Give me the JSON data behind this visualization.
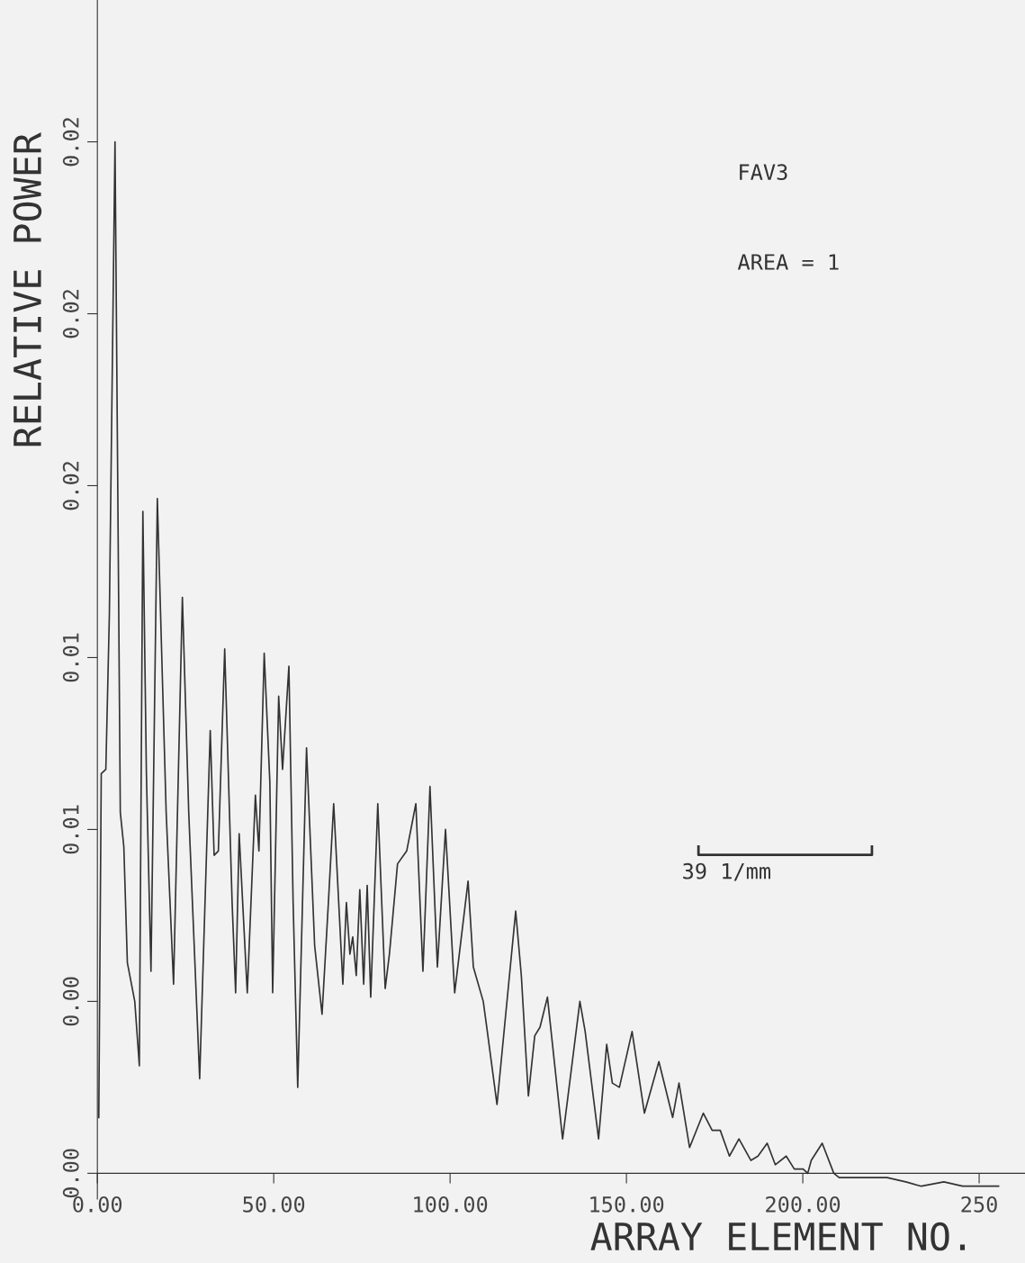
{
  "chart_data": {
    "type": "line",
    "xlabel": "ARRAY ELEMENT NO.",
    "ylabel": "RELATIVE POWER",
    "annotations": [
      "FAV3",
      "AREA = 1",
      "39 1/mm"
    ],
    "xlim": [
      0,
      263
    ],
    "ylim": [
      -0.0006,
      0.0273
    ],
    "xticks": [
      {
        "value": 0,
        "label": "0.00"
      },
      {
        "value": 50,
        "label": "50.00"
      },
      {
        "value": 100,
        "label": "100.00"
      },
      {
        "value": 150,
        "label": "150.00"
      },
      {
        "value": 200,
        "label": "200.00"
      },
      {
        "value": 250,
        "label": "250"
      }
    ],
    "yticks": [
      {
        "value": 0,
        "label": "0.00"
      },
      {
        "value": 0.004,
        "label": "0.00"
      },
      {
        "value": 0.008,
        "label": "0.01"
      },
      {
        "value": 0.012,
        "label": "0.01"
      },
      {
        "value": 0.016,
        "label": "0.02"
      },
      {
        "value": 0.02,
        "label": "0.02"
      },
      {
        "value": 0.024,
        "label": "0.02"
      }
    ],
    "marker": "none",
    "line_style": "solid",
    "series": [
      {
        "color": "#333333",
        "x": [
          0.4,
          1.1,
          2.4,
          3.4,
          5.0,
          5.7,
          6.5,
          7.5,
          8.5,
          10.6,
          11.9,
          12.9,
          13.9,
          15.2,
          17.0,
          18.2,
          19.5,
          21.6,
          24.1,
          25.9,
          29.0,
          32.0,
          33.1,
          34.3,
          36.1,
          38.2,
          39.2,
          40.2,
          42.5,
          44.8,
          45.8,
          47.3,
          48.9,
          49.7,
          51.4,
          52.5,
          54.3,
          55.5,
          56.8,
          59.3,
          61.6,
          63.7,
          65.5,
          67.0,
          69.6,
          70.6,
          71.6,
          72.4,
          73.4,
          74.4,
          75.5,
          76.5,
          77.5,
          79.5,
          81.6,
          82.8,
          85.1,
          87.7,
          90.3,
          92.3,
          94.3,
          96.4,
          98.7,
          101.3,
          105.1,
          106.6,
          109.4,
          110.4,
          113.3,
          118.6,
          120.2,
          122.2,
          124.0,
          125.5,
          127.6,
          131.9,
          134.2,
          136.8,
          138.3,
          142.1,
          144.4,
          146.0,
          148.0,
          151.6,
          155.1,
          159.2,
          163.1,
          164.9,
          167.9,
          171.8,
          174.3,
          176.6,
          179.2,
          181.9,
          185.3,
          187.3,
          189.9,
          192.2,
          195.3,
          197.6,
          200.1,
          201.4,
          202.4,
          205.5,
          208.8,
          210.3,
          218.5,
          223.9,
          229.2,
          233.6,
          240.0,
          245.3,
          255.5
        ],
        "values": [
          0.0013,
          0.0093,
          0.0094,
          0.013,
          0.024,
          0.0168,
          0.0084,
          0.0076,
          0.0049,
          0.004,
          0.0025,
          0.0154,
          0.0093,
          0.0047,
          0.0157,
          0.0122,
          0.0084,
          0.0044,
          0.0134,
          0.0084,
          0.0022,
          0.0103,
          0.0074,
          0.0075,
          0.0122,
          0.0063,
          0.0042,
          0.0079,
          0.0042,
          0.0088,
          0.0075,
          0.0121,
          0.0091,
          0.0042,
          0.0111,
          0.0094,
          0.0118,
          0.0063,
          0.002,
          0.0099,
          0.0053,
          0.0037,
          0.0063,
          0.0086,
          0.0044,
          0.0063,
          0.0051,
          0.0055,
          0.0046,
          0.0066,
          0.0044,
          0.0067,
          0.0041,
          0.0086,
          0.0043,
          0.0051,
          0.0072,
          0.0075,
          0.0086,
          0.0047,
          0.009,
          0.0048,
          0.008,
          0.0042,
          0.0068,
          0.0048,
          0.004,
          0.0034,
          0.0016,
          0.0061,
          0.0046,
          0.0018,
          0.0032,
          0.0034,
          0.0041,
          0.0008,
          0.0023,
          0.004,
          0.0033,
          0.0008,
          0.003,
          0.0021,
          0.002,
          0.0033,
          0.0014,
          0.0026,
          0.0013,
          0.0021,
          0.0006,
          0.0014,
          0.001,
          0.001,
          0.0004,
          0.0008,
          0.0003,
          0.0004,
          0.0007,
          0.0002,
          0.0004,
          0.0001,
          0.0001,
          0.0,
          0.0003,
          0.0007,
          0.0,
          -0.0001,
          -0.0001,
          -0.0001,
          -0.0002,
          -0.0003,
          -0.0002,
          -0.0003,
          -0.0003
        ]
      }
    ]
  }
}
